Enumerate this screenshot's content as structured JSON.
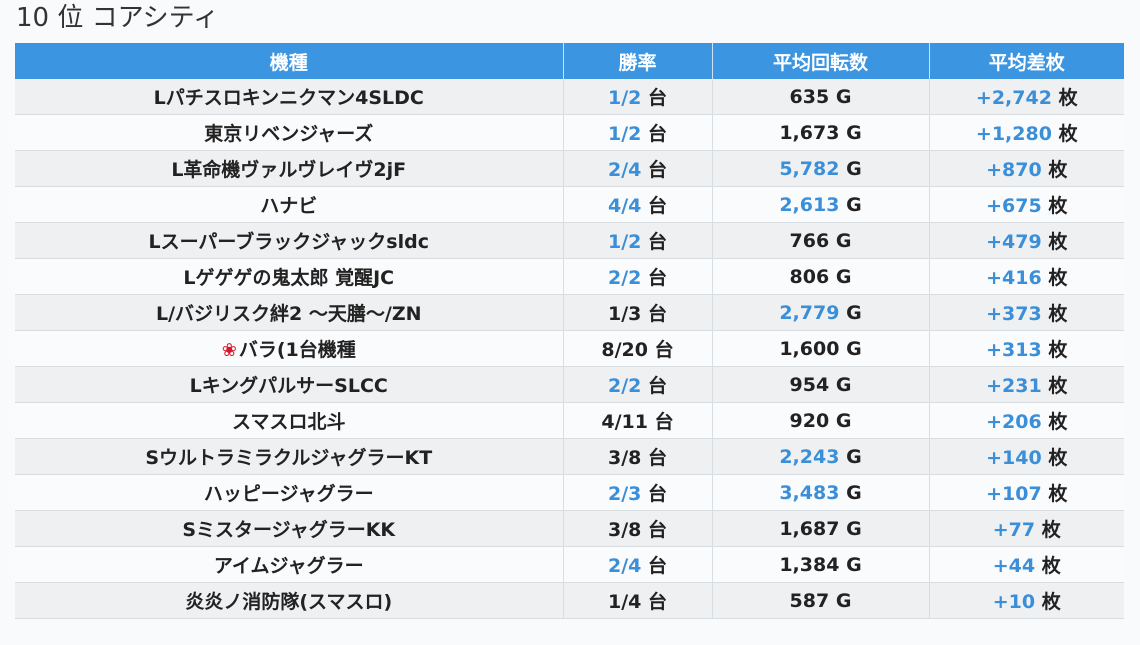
{
  "title": "10 位 コアシティ",
  "columns": [
    "機種",
    "勝率",
    "平均回転数",
    "平均差枚"
  ],
  "units": {
    "win": "台",
    "spin": "G",
    "diff": "枚"
  },
  "rows": [
    {
      "name": "Lパチスロキンニクマン4SLDC",
      "win": "1/2",
      "win_hl": true,
      "spin": "635",
      "spin_hl": false,
      "diff": "+2,742",
      "diff_hl": true
    },
    {
      "name": "東京リベンジャーズ",
      "win": "1/2",
      "win_hl": true,
      "spin": "1,673",
      "spin_hl": false,
      "diff": "+1,280",
      "diff_hl": true
    },
    {
      "name": "L革命機ヴァルヴレイヴ2jF",
      "win": "2/4",
      "win_hl": true,
      "spin": "5,782",
      "spin_hl": true,
      "diff": "+870",
      "diff_hl": true
    },
    {
      "name": "ハナビ",
      "win": "4/4",
      "win_hl": true,
      "spin": "2,613",
      "spin_hl": true,
      "diff": "+675",
      "diff_hl": true
    },
    {
      "name": "Lスーパーブラックジャックsldc",
      "win": "1/2",
      "win_hl": true,
      "spin": "766",
      "spin_hl": false,
      "diff": "+479",
      "diff_hl": true
    },
    {
      "name": "Lゲゲゲの鬼太郎 覚醒JC",
      "win": "2/2",
      "win_hl": true,
      "spin": "806",
      "spin_hl": false,
      "diff": "+416",
      "diff_hl": true
    },
    {
      "name": "L/バジリスク絆2 〜天膳〜/ZN",
      "win": "1/3",
      "win_hl": false,
      "spin": "2,779",
      "spin_hl": true,
      "diff": "+373",
      "diff_hl": true
    },
    {
      "name": "バラ(1台機種",
      "rose": true,
      "win": "8/20",
      "win_hl": false,
      "spin": "1,600",
      "spin_hl": false,
      "diff": "+313",
      "diff_hl": true
    },
    {
      "name": "LキングパルサーSLCC",
      "win": "2/2",
      "win_hl": true,
      "spin": "954",
      "spin_hl": false,
      "diff": "+231",
      "diff_hl": true
    },
    {
      "name": "スマスロ北斗",
      "win": "4/11",
      "win_hl": false,
      "spin": "920",
      "spin_hl": false,
      "diff": "+206",
      "diff_hl": true
    },
    {
      "name": "SウルトラミラクルジャグラーKT",
      "win": "3/8",
      "win_hl": false,
      "spin": "2,243",
      "spin_hl": true,
      "diff": "+140",
      "diff_hl": true
    },
    {
      "name": "ハッピージャグラー",
      "win": "2/3",
      "win_hl": true,
      "spin": "3,483",
      "spin_hl": true,
      "diff": "+107",
      "diff_hl": true
    },
    {
      "name": "SミスタージャグラーKK",
      "win": "3/8",
      "win_hl": false,
      "spin": "1,687",
      "spin_hl": false,
      "diff": "+77",
      "diff_hl": true
    },
    {
      "name": "アイムジャグラー",
      "win": "2/4",
      "win_hl": true,
      "spin": "1,384",
      "spin_hl": false,
      "diff": "+44",
      "diff_hl": true
    },
    {
      "name": "炎炎ノ消防隊(スマスロ)",
      "win": "1/4",
      "win_hl": false,
      "spin": "587",
      "spin_hl": false,
      "diff": "+10",
      "diff_hl": true
    }
  ],
  "colors": {
    "header": "#3b95e0",
    "highlight": "#3b8ed8",
    "rose": "#d8182a"
  },
  "icons": {
    "rose": "rose-icon"
  }
}
